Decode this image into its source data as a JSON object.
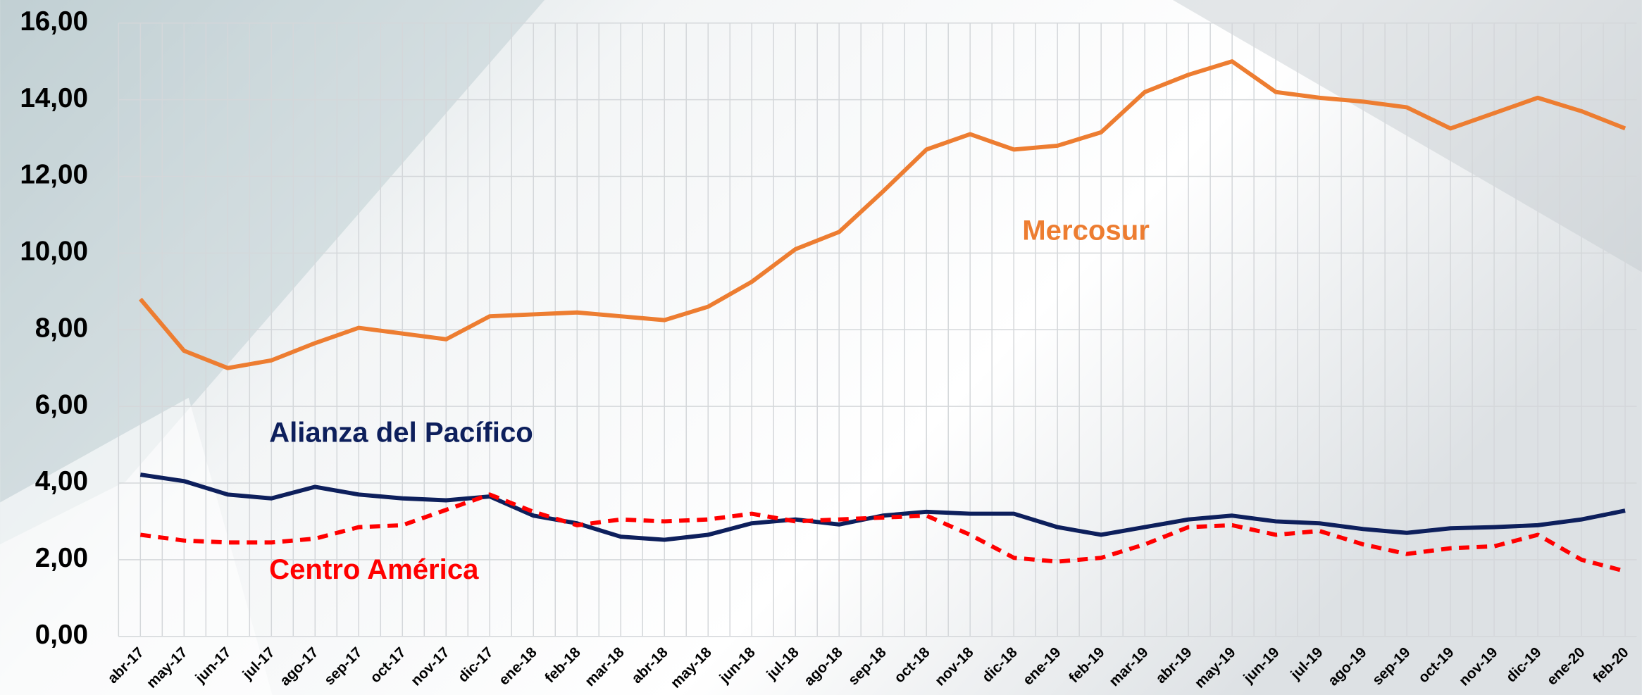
{
  "chart_data": {
    "type": "line",
    "categories": [
      "abr-17",
      "may-17",
      "jun-17",
      "jul-17",
      "ago-17",
      "sep-17",
      "oct-17",
      "nov-17",
      "dic-17",
      "ene-18",
      "feb-18",
      "mar-18",
      "abr-18",
      "may-18",
      "jun-18",
      "jul-18",
      "ago-18",
      "sep-18",
      "oct-18",
      "nov-18",
      "dic-18",
      "ene-19",
      "feb-19",
      "mar-19",
      "abr-19",
      "may-19",
      "jun-19",
      "jul-19",
      "ago-19",
      "sep-19",
      "oct-19",
      "nov-19",
      "dic-19",
      "ene-20",
      "feb-20"
    ],
    "series": [
      {
        "name": "Mercosur",
        "color": "#ed7d31",
        "dashed": false,
        "values": [
          8.8,
          7.45,
          7.0,
          7.2,
          7.65,
          8.05,
          7.9,
          7.75,
          8.35,
          8.4,
          8.45,
          8.35,
          8.25,
          8.6,
          9.25,
          10.1,
          10.55,
          11.6,
          12.7,
          13.1,
          12.7,
          12.8,
          13.15,
          14.2,
          14.65,
          15.0,
          14.2,
          14.05,
          13.95,
          13.8,
          13.25,
          13.65,
          14.05,
          13.7,
          13.25
        ]
      },
      {
        "name": "Alianza del Pacífico",
        "color": "#0d1f5c",
        "dashed": false,
        "values": [
          4.22,
          4.05,
          3.7,
          3.6,
          3.9,
          3.7,
          3.6,
          3.55,
          3.65,
          3.15,
          2.95,
          2.6,
          2.52,
          2.65,
          2.95,
          3.05,
          2.92,
          3.15,
          3.25,
          3.2,
          3.2,
          2.85,
          2.65,
          2.85,
          3.05,
          3.15,
          3.0,
          2.95,
          2.8,
          2.7,
          2.82,
          2.85,
          2.9,
          3.05,
          3.28
        ]
      },
      {
        "name": "Centro América",
        "color": "#ff0000",
        "dashed": true,
        "values": [
          2.65,
          2.5,
          2.45,
          2.45,
          2.55,
          2.85,
          2.9,
          3.3,
          3.7,
          3.25,
          2.9,
          3.05,
          3.0,
          3.05,
          3.2,
          3.0,
          3.05,
          3.1,
          3.15,
          2.65,
          2.05,
          1.95,
          2.05,
          2.4,
          2.85,
          2.9,
          2.65,
          2.75,
          2.4,
          2.15,
          2.3,
          2.35,
          2.65,
          2.0,
          1.7
        ]
      }
    ],
    "ylim": [
      0,
      16
    ],
    "yticks": [
      {
        "value": 0,
        "label": "0,00"
      },
      {
        "value": 2,
        "label": "2,00"
      },
      {
        "value": 4,
        "label": "4,00"
      },
      {
        "value": 6,
        "label": "6,00"
      },
      {
        "value": 8,
        "label": "8,00"
      },
      {
        "value": 10,
        "label": "10,00"
      },
      {
        "value": 12,
        "label": "12,00"
      },
      {
        "value": 14,
        "label": "14,00"
      },
      {
        "value": 16,
        "label": "16,00"
      }
    ],
    "grid": true,
    "legend": "inline"
  }
}
